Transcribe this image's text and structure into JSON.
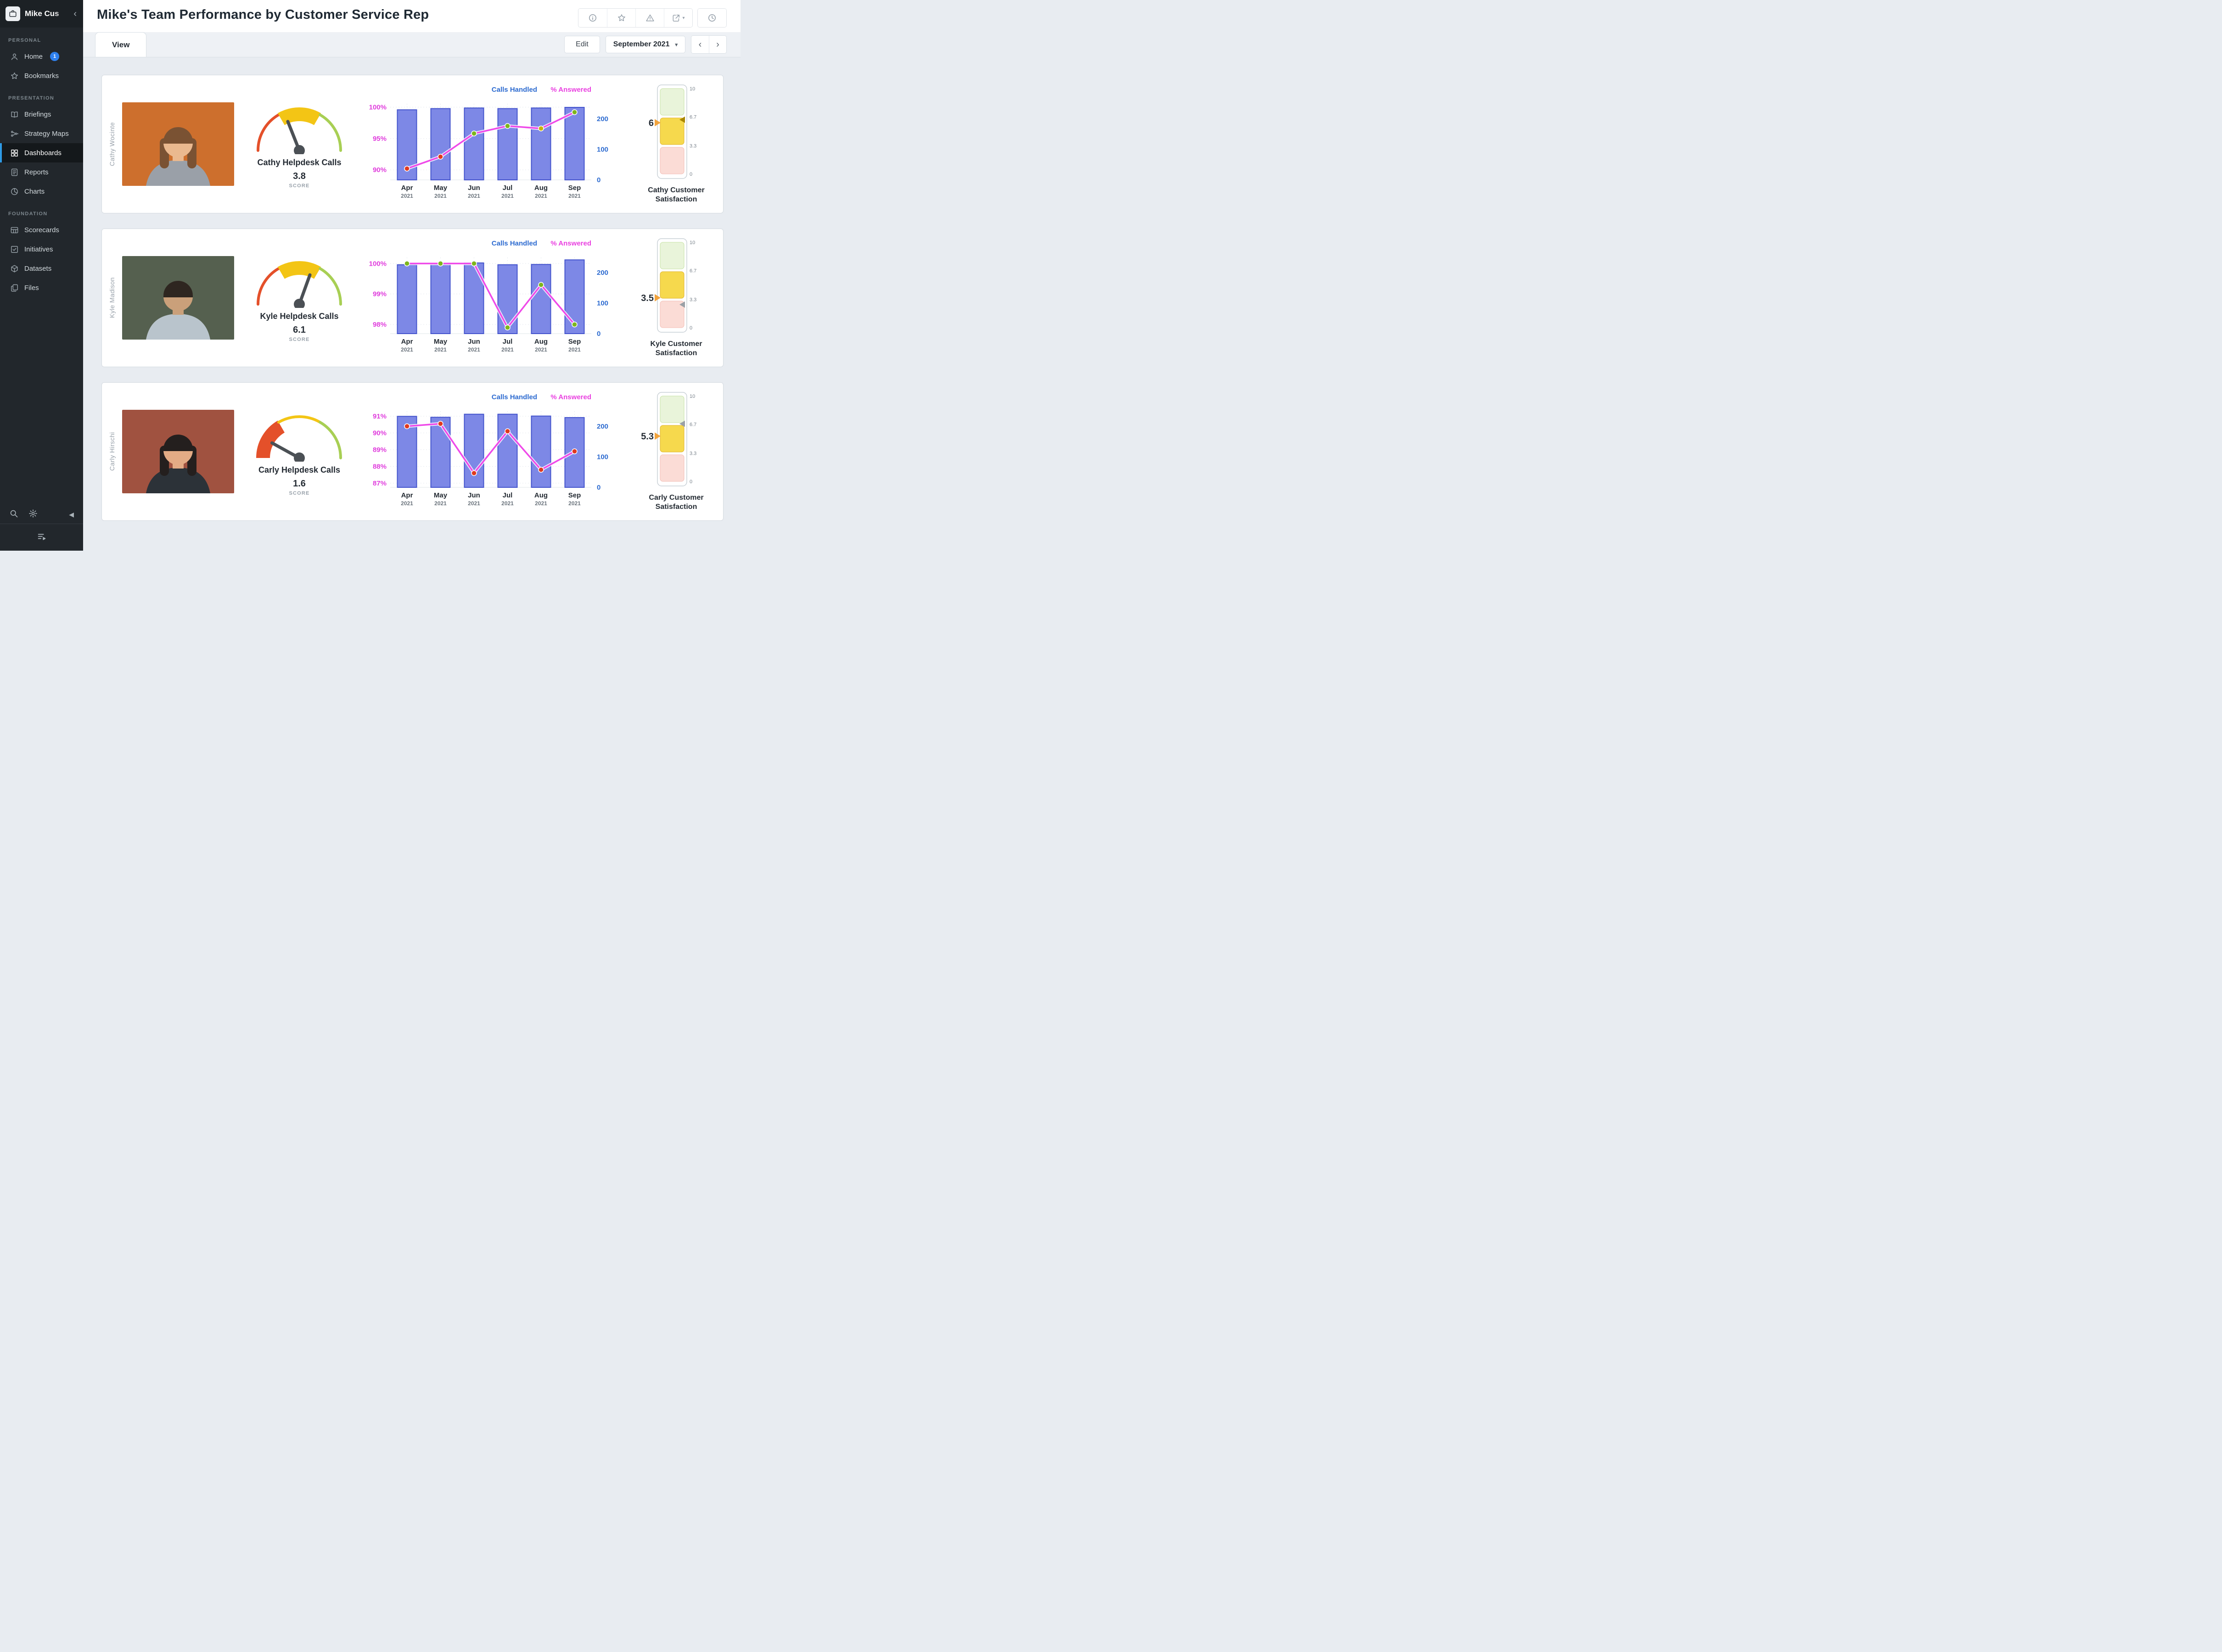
{
  "sidebar": {
    "logo_text": "Mike Cus",
    "collapse_icon": "‹",
    "sections": [
      {
        "label": "PERSONAL",
        "items": [
          {
            "label": "Home",
            "icon": "user",
            "badge": "1"
          },
          {
            "label": "Bookmarks",
            "icon": "star"
          }
        ]
      },
      {
        "label": "PRESENTATION",
        "items": [
          {
            "label": "Briefings",
            "icon": "book"
          },
          {
            "label": "Strategy Maps",
            "icon": "strategy"
          },
          {
            "label": "Dashboards",
            "icon": "dashboard",
            "active": true
          },
          {
            "label": "Reports",
            "icon": "report"
          },
          {
            "label": "Charts",
            "icon": "chart-pie"
          }
        ]
      },
      {
        "label": "FOUNDATION",
        "items": [
          {
            "label": "Scorecards",
            "icon": "scorecard"
          },
          {
            "label": "Initiatives",
            "icon": "check-square"
          },
          {
            "label": "Datasets",
            "icon": "dataset"
          },
          {
            "label": "Files",
            "icon": "files"
          }
        ]
      }
    ]
  },
  "header": {
    "title": "Mike's Team Performance by Customer Service Rep",
    "toolbar": [
      "info",
      "star",
      "warning",
      "export",
      "history"
    ]
  },
  "tabbar": {
    "view_tab": "View",
    "edit_button": "Edit",
    "period": "September 2021"
  },
  "gauge_zones": [
    {
      "to": 3.33,
      "color": "#e4502a"
    },
    {
      "to": 6.67,
      "color": "#f3c515"
    },
    {
      "to": 10,
      "color": "#a8cf54"
    }
  ],
  "sat_colors": {
    "green_fill": "#e9f4da",
    "green_border": "#c7e2a4",
    "yellow_fill": "#f6d94d",
    "yellow_border": "#dfb32a",
    "red_fill": "#fbdcd6",
    "red_border": "#f3bdb4",
    "marker_color": "#f2a33c"
  },
  "reps": [
    {
      "name": "Cathy Wocinte",
      "photo": {
        "bg": "#cd6f2d",
        "hair": "#7a5233",
        "skin": "#eab98f",
        "shirt": "#9aa0a8",
        "hair_style": "long"
      },
      "gauge": {
        "title": "Cathy Helpdesk Calls",
        "score": 3.8,
        "score_text": "3.8",
        "score_label": "SCORE"
      },
      "chart": {
        "type": "bar+line",
        "legend": [
          {
            "label": "Calls Handled",
            "color": "#2d6bd0"
          },
          {
            "label": "% Answered",
            "color": "#e93fe0"
          }
        ],
        "months": [
          "Apr",
          "May",
          "Jun",
          "Jul",
          "Aug",
          "Sep"
        ],
        "year": "2021",
        "bars": [
          230,
          234,
          236,
          234,
          236,
          238
        ],
        "bar_color": "#7d88e6",
        "bar_border": "#4353cc",
        "right_ticks": [
          0,
          100,
          200
        ],
        "right_max": 250,
        "left_ticks": [
          {
            "label": "100%",
            "value": 100
          },
          {
            "label": "95%",
            "value": 95
          },
          {
            "label": "90%",
            "value": 90
          }
        ],
        "left_min": 88.4,
        "left_max": 100.55,
        "line": [
          90.2,
          92.1,
          95.8,
          97.0,
          96.6,
          99.2
        ],
        "line_color": "#ef49e9",
        "left_label_color": "#e03edd",
        "dot_colors": [
          "#e0391f",
          "#e0391f",
          "#7db51c",
          "#7db51c",
          "#c9b400",
          "#7db51c"
        ]
      },
      "satisfaction": {
        "value_text": "6",
        "value": 6,
        "marker2": 6.35,
        "marker2_color": "#a98600",
        "ticks": [
          {
            "label": "10",
            "value": 10
          },
          {
            "label": "6.7",
            "value": 6.7
          },
          {
            "label": "3.3",
            "value": 3.3
          },
          {
            "label": "0",
            "value": 0
          }
        ],
        "caption": "Cathy Customer Satisfaction"
      }
    },
    {
      "name": "Kyle Madison",
      "photo": {
        "bg": "#55604f",
        "hair": "#2e2620",
        "skin": "#caa07a",
        "shirt": "#b9c4cc",
        "hair_style": "short"
      },
      "gauge": {
        "title": "Kyle Helpdesk Calls",
        "score": 6.1,
        "score_text": "6.1",
        "score_label": "SCORE"
      },
      "chart": {
        "type": "bar+line",
        "legend": [
          {
            "label": "Calls Handled",
            "color": "#2d6bd0"
          },
          {
            "label": "% Answered",
            "color": "#e93fe0"
          }
        ],
        "months": [
          "Apr",
          "May",
          "Jun",
          "Jul",
          "Aug",
          "Sep"
        ],
        "year": "2021",
        "bars": [
          226,
          230,
          232,
          226,
          227,
          242
        ],
        "bar_color": "#7d88e6",
        "bar_border": "#4353cc",
        "right_ticks": [
          0,
          100,
          200
        ],
        "right_max": 250,
        "left_ticks": [
          {
            "label": "100%",
            "value": 100
          },
          {
            "label": "99%",
            "value": 99
          },
          {
            "label": "98%",
            "value": 98
          }
        ],
        "left_min": 97.7,
        "left_max": 100.2,
        "line": [
          100,
          100,
          100,
          97.9,
          99.3,
          98.0
        ],
        "line_color": "#ef49e9",
        "left_label_color": "#e03edd",
        "dot_colors": [
          "#7db51c",
          "#7db51c",
          "#7db51c",
          "#7db51c",
          "#7db51c",
          "#7db51c"
        ]
      },
      "satisfaction": {
        "value_text": "3.5",
        "value": 3.5,
        "marker2": 2.7,
        "marker2_color": "#9aa0a6",
        "ticks": [
          {
            "label": "10",
            "value": 10
          },
          {
            "label": "6.7",
            "value": 6.7
          },
          {
            "label": "3.3",
            "value": 3.3
          },
          {
            "label": "0",
            "value": 0
          }
        ],
        "caption": "Kyle Customer Satisfaction"
      }
    },
    {
      "name": "Carly Hirschi",
      "photo": {
        "bg": "#a05240",
        "hair": "#241f1e",
        "skin": "#e3ab85",
        "shirt": "#2c3238",
        "hair_style": "long"
      },
      "gauge": {
        "title": "Carly Helpdesk Calls",
        "score": 1.6,
        "score_text": "1.6",
        "score_label": "SCORE"
      },
      "chart": {
        "type": "bar+line",
        "legend": [
          {
            "label": "Calls Handled",
            "color": "#2d6bd0"
          },
          {
            "label": "% Answered",
            "color": "#e93fe0"
          }
        ],
        "months": [
          "Apr",
          "May",
          "Jun",
          "Jul",
          "Aug",
          "Sep"
        ],
        "year": "2021",
        "bars": [
          233,
          230,
          240,
          240,
          234,
          229
        ],
        "bar_color": "#7d88e6",
        "bar_border": "#4353cc",
        "right_ticks": [
          0,
          100,
          200
        ],
        "right_max": 250,
        "left_ticks": [
          {
            "label": "91%",
            "value": 91
          },
          {
            "label": "90%",
            "value": 90
          },
          {
            "label": "89%",
            "value": 89
          },
          {
            "label": "88%",
            "value": 88
          },
          {
            "label": "87%",
            "value": 87
          }
        ],
        "left_min": 86.75,
        "left_max": 91.3,
        "line": [
          90.4,
          90.55,
          87.6,
          90.1,
          87.8,
          88.9
        ],
        "line_color": "#ef49e9",
        "left_label_color": "#e03edd",
        "dot_colors": [
          "#e0391f",
          "#e0391f",
          "#e0391f",
          "#e0391f",
          "#e0391f",
          "#e0391f"
        ]
      },
      "satisfaction": {
        "value_text": "5.3",
        "value": 5.3,
        "marker2": 6.75,
        "marker2_color": "#9aa0a6",
        "ticks": [
          {
            "label": "10",
            "value": 10
          },
          {
            "label": "6.7",
            "value": 6.7
          },
          {
            "label": "3.3",
            "value": 3.3
          },
          {
            "label": "0",
            "value": 0
          }
        ],
        "caption": "Carly Customer Satisfaction"
      }
    }
  ]
}
